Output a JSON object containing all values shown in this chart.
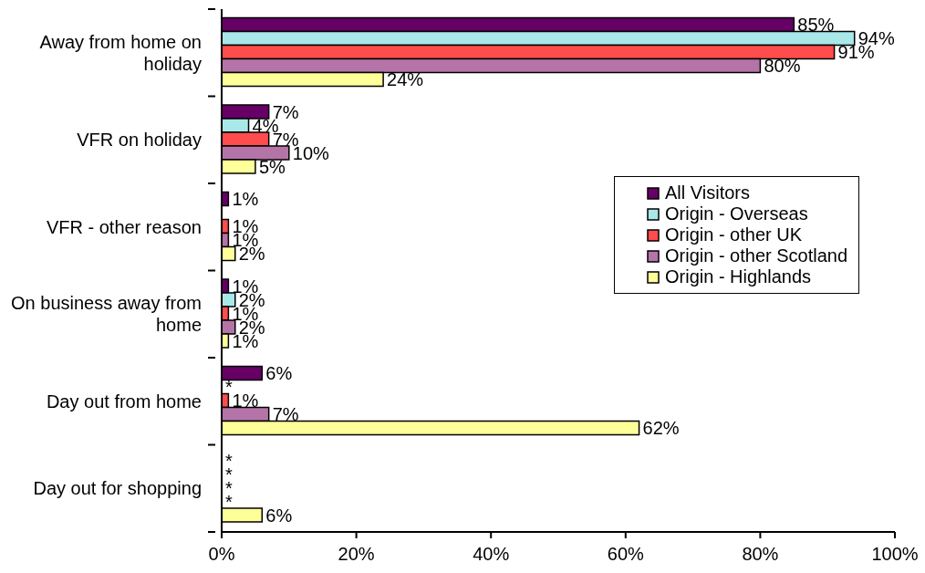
{
  "chart_data": {
    "type": "bar",
    "orientation": "horizontal",
    "categories": [
      "Away from home on holiday",
      "VFR on holiday",
      "VFR - other reason",
      "On business away from home",
      "Day out from home",
      "Day out for shopping"
    ],
    "series": [
      {
        "name": "All Visitors",
        "color": "#660066",
        "values": [
          85,
          7,
          1,
          1,
          6,
          null
        ],
        "value_labels": [
          "85%",
          "7%",
          "1%",
          "1%",
          "6%",
          "*"
        ]
      },
      {
        "name": "Origin - Overseas",
        "color": "#a8e8e8",
        "values": [
          94,
          4,
          null,
          2,
          null,
          null
        ],
        "value_labels": [
          "94%",
          "4%",
          null,
          "2%",
          "*",
          "*"
        ]
      },
      {
        "name": "Origin - other UK",
        "color": "#ff4d4d",
        "values": [
          91,
          7,
          1,
          1,
          1,
          null
        ],
        "value_labels": [
          "91%",
          "7%",
          "1%",
          "1%",
          "1%",
          "*"
        ]
      },
      {
        "name": "Origin - other Scotland",
        "color": "#b574a8",
        "values": [
          80,
          10,
          1,
          2,
          7,
          null
        ],
        "value_labels": [
          "80%",
          "10%",
          "1%",
          "2%",
          "7%",
          "*"
        ]
      },
      {
        "name": "Origin - Highlands",
        "color": "#ffff99",
        "values": [
          24,
          5,
          2,
          1,
          62,
          6
        ],
        "value_labels": [
          "24%",
          "5%",
          "2%",
          "1%",
          "62%",
          "6%"
        ]
      }
    ],
    "xlim": [
      0,
      100
    ],
    "xticks": [
      {
        "value": 0,
        "label": "0%"
      },
      {
        "value": 20,
        "label": "20%"
      },
      {
        "value": 40,
        "label": "40%"
      },
      {
        "value": 60,
        "label": "60%"
      },
      {
        "value": 80,
        "label": "80%"
      },
      {
        "value": 100,
        "label": "100%"
      }
    ],
    "legend": "right"
  }
}
